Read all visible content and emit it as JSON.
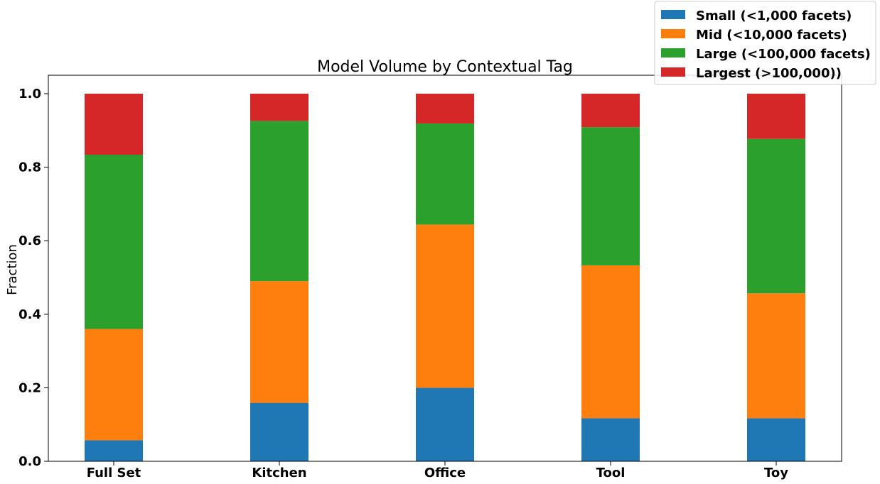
{
  "chart_data": {
    "type": "bar",
    "stacked": true,
    "title": "Model Volume by Contextual Tag",
    "xlabel": "",
    "ylabel": "Fraction",
    "ylim": [
      0,
      1.05
    ],
    "yticks": [
      "0.0",
      "0.2",
      "0.4",
      "0.6",
      "0.8",
      "1.0"
    ],
    "grid": false,
    "legend_position": "top-right",
    "categories": [
      "Full Set",
      "Kitchen",
      "Office",
      "Tool",
      "Toy"
    ],
    "series": [
      {
        "name": "Small (<1,000 facets)",
        "color": "#1f77b4",
        "values": [
          0.057,
          0.159,
          0.2,
          0.117,
          0.117
        ]
      },
      {
        "name": "Mid (<10,000 facets)",
        "color": "#ff7f0e",
        "values": [
          0.303,
          0.331,
          0.444,
          0.416,
          0.34
        ]
      },
      {
        "name": "Large (<100,000 facets)",
        "color": "#2ca02c",
        "values": [
          0.474,
          0.436,
          0.275,
          0.376,
          0.42
        ]
      },
      {
        "name": "Largest (>100,000))",
        "color": "#d62728",
        "values": [
          0.166,
          0.074,
          0.081,
          0.091,
          0.123
        ]
      }
    ]
  }
}
